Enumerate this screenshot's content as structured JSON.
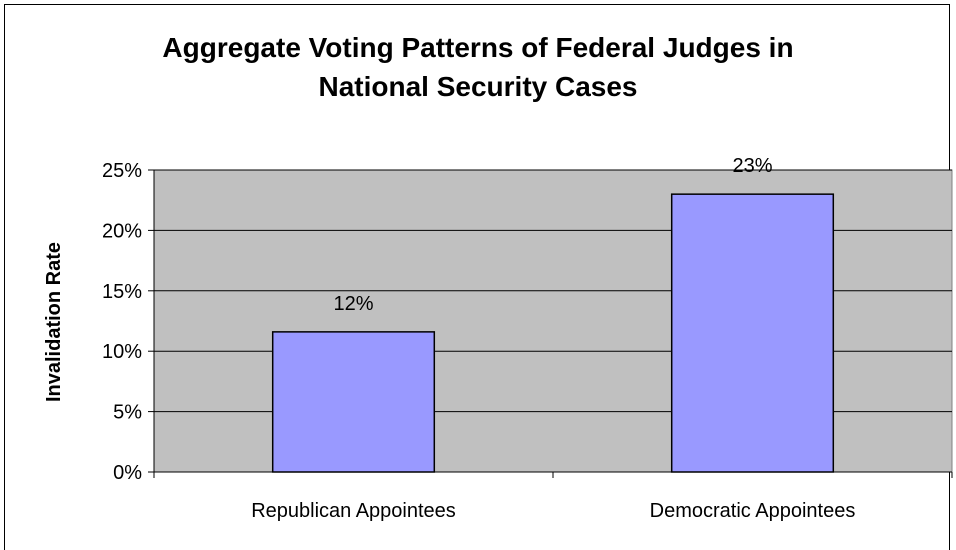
{
  "chart_data": {
    "type": "bar",
    "title_lines": [
      "Aggregate Voting Patterns of Federal Judges in",
      "National Security Cases"
    ],
    "categories": [
      "Republican Appointees",
      "Democratic Appointees"
    ],
    "values": [
      11.6,
      23.0
    ],
    "data_labels": [
      "12%",
      "23%"
    ],
    "ylabel": "Invalidation Rate",
    "xlabel": "",
    "ylim": [
      0,
      25
    ],
    "yticks": [
      "0%",
      "5%",
      "10%",
      "15%",
      "20%",
      "25%"
    ],
    "grid": true,
    "legend": "none",
    "colors": {
      "bar_fill": "#9999ff",
      "plot_background": "#c0c0c0",
      "bar_border": "#000000"
    }
  }
}
